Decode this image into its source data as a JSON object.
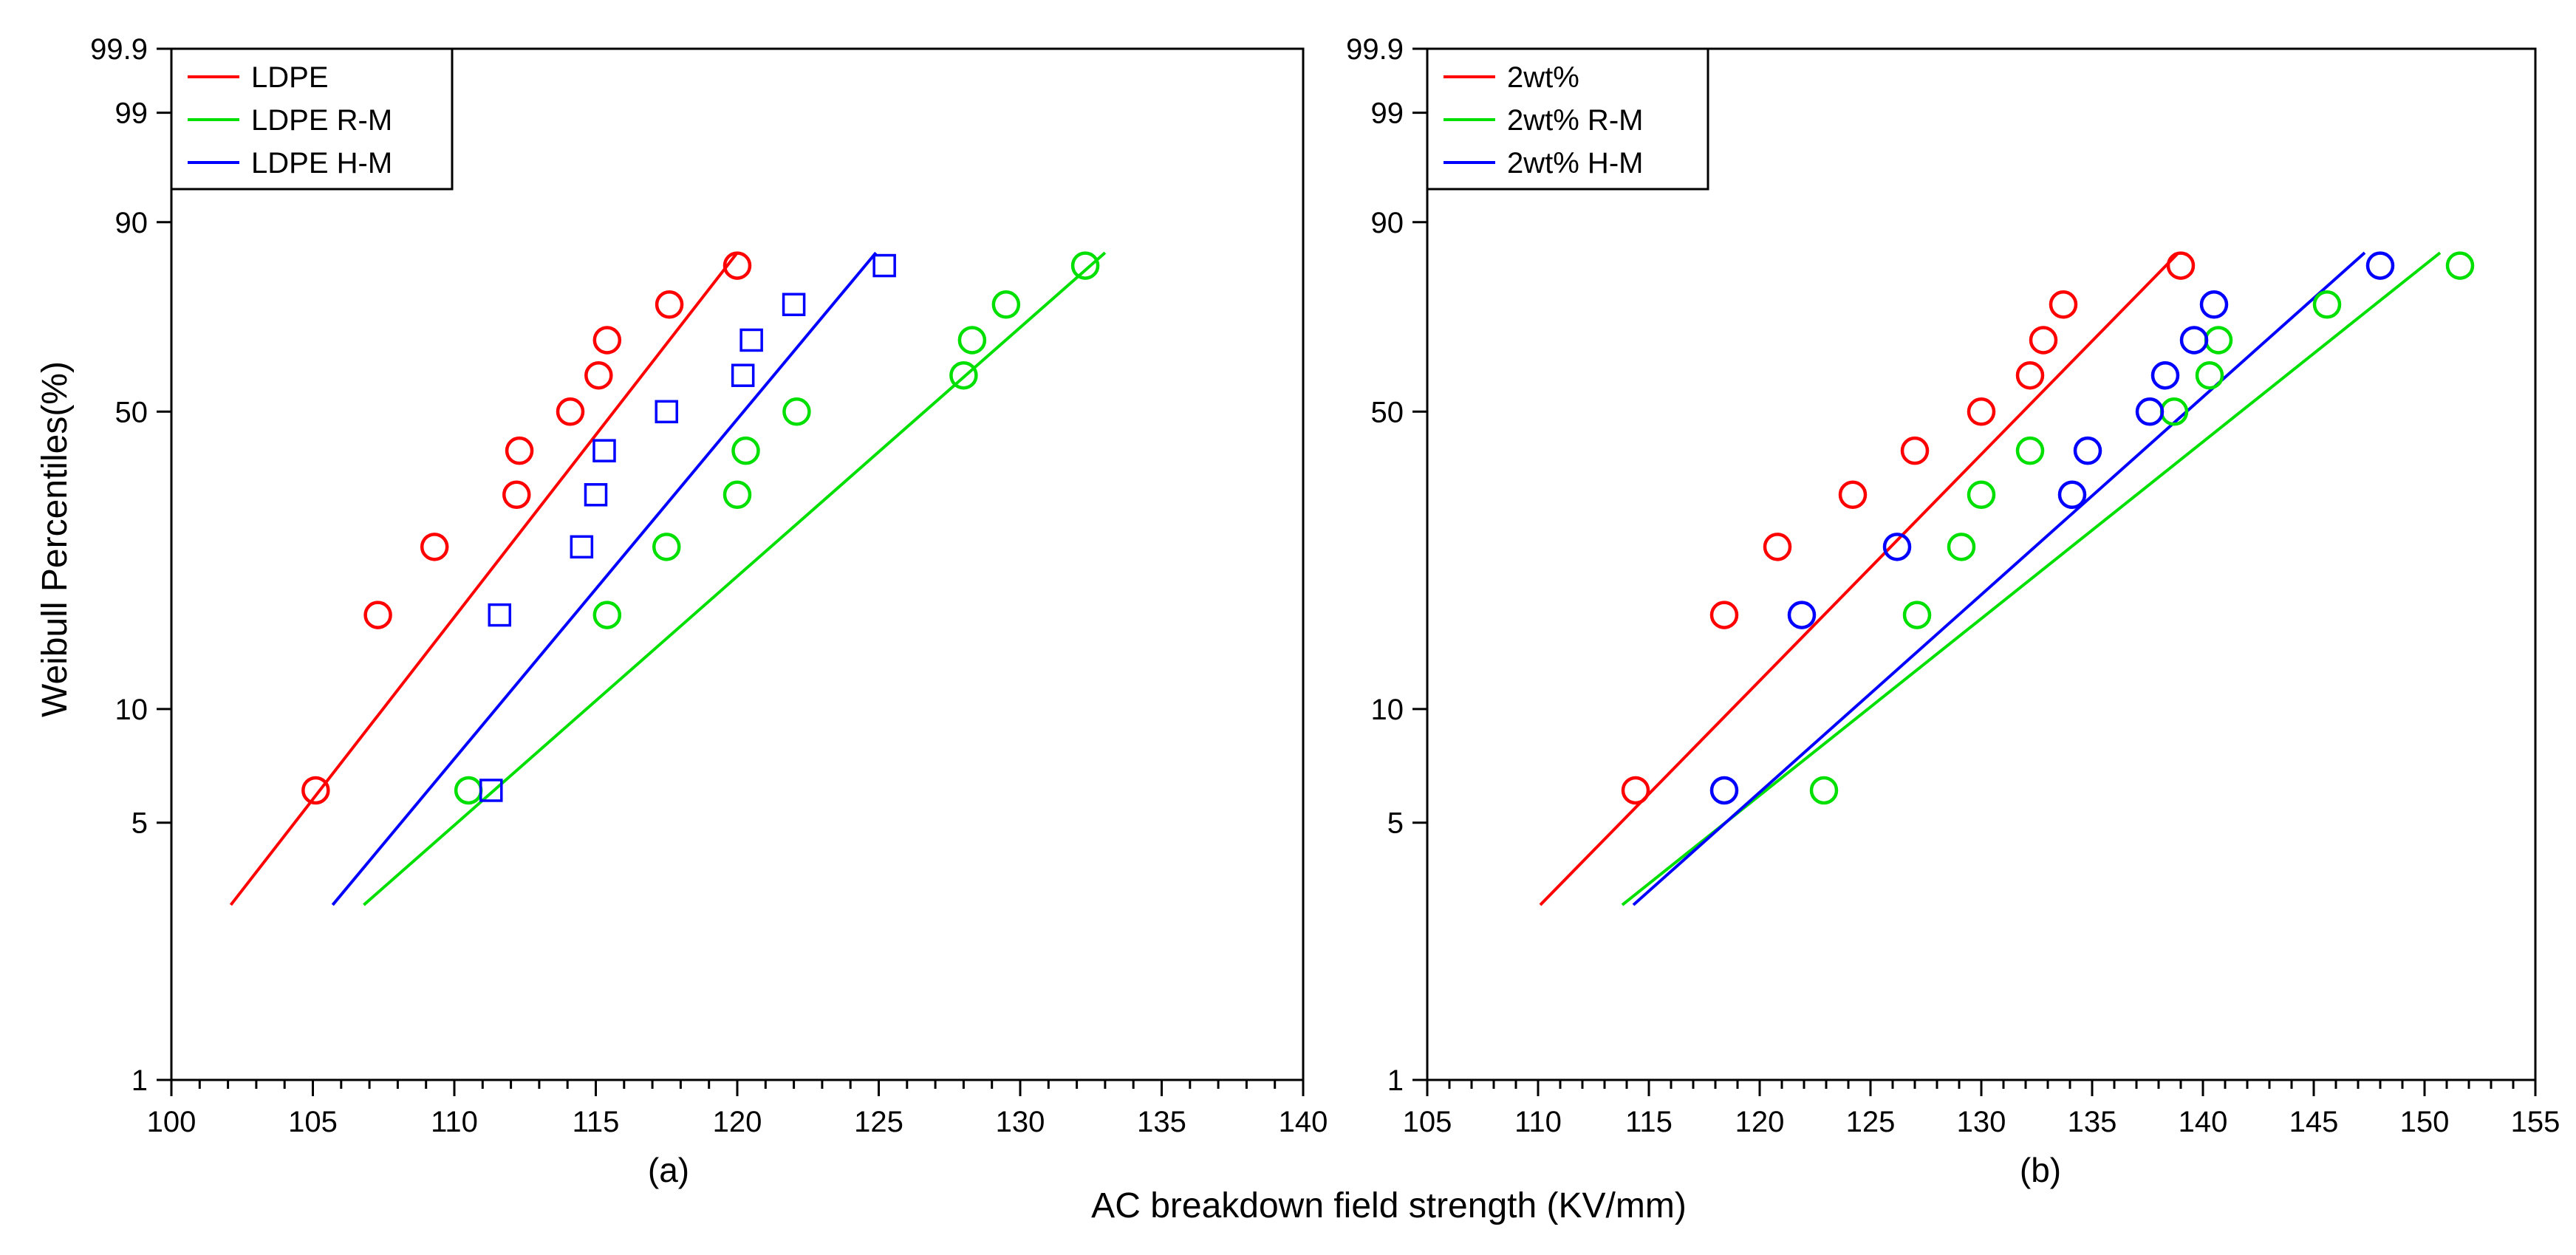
{
  "x_axis_title": "AC breakdown field strength (KV/mm)",
  "y_axis_title": "Weibull Percentiles(%)",
  "colors": {
    "red": "#ff0000",
    "green": "#00e000",
    "blue": "#0000ff",
    "axis": "#000000"
  },
  "chart_data": [
    {
      "type": "scatter",
      "panel_label": "(a)",
      "xlabel": "AC breakdown field strength (KV/mm)",
      "ylabel": "Weibull Percentiles(%)",
      "y_scale": "weibull",
      "xlim": [
        100,
        140
      ],
      "ylim": [
        1,
        99.9
      ],
      "x_ticks": [
        100,
        105,
        110,
        115,
        120,
        125,
        130,
        135,
        140
      ],
      "y_ticks": [
        1,
        5,
        10,
        50,
        90,
        99,
        99.9
      ],
      "legend_position": "top-left",
      "series": [
        {
          "name": "LDPE",
          "color": "#ff0000",
          "marker": "circle",
          "points": [
            [
              105.1,
              6.1
            ],
            [
              107.3,
              17.4
            ],
            [
              109.3,
              25.5
            ],
            [
              112.2,
              33.6
            ],
            [
              112.3,
              41.8
            ],
            [
              114.1,
              50.0
            ],
            [
              115.1,
              58.2
            ],
            [
              115.4,
              66.4
            ],
            [
              117.6,
              74.5
            ],
            [
              120.0,
              82.6
            ]
          ],
          "fit_line": [
            [
              102.1,
              3.0
            ],
            [
              120.0,
              85.0
            ]
          ]
        },
        {
          "name": "LDPE R-M",
          "color": "#00e000",
          "marker": "circle",
          "points": [
            [
              110.5,
              6.1
            ],
            [
              115.4,
              17.4
            ],
            [
              117.5,
              25.5
            ],
            [
              120.0,
              33.6
            ],
            [
              120.3,
              41.8
            ],
            [
              122.1,
              50.0
            ],
            [
              128.0,
              58.2
            ],
            [
              128.3,
              66.4
            ],
            [
              129.5,
              74.5
            ],
            [
              132.3,
              82.6
            ]
          ],
          "fit_line": [
            [
              106.8,
              3.0
            ],
            [
              133.0,
              85.0
            ]
          ]
        },
        {
          "name": "LDPE H-M",
          "color": "#0000ff",
          "marker": "square",
          "points": [
            [
              111.3,
              6.1
            ],
            [
              111.6,
              17.4
            ],
            [
              114.5,
              25.5
            ],
            [
              115.0,
              33.6
            ],
            [
              115.3,
              41.8
            ],
            [
              117.5,
              50.0
            ],
            [
              120.2,
              58.2
            ],
            [
              120.5,
              66.4
            ],
            [
              122.0,
              74.5
            ],
            [
              125.2,
              82.6
            ]
          ],
          "fit_line": [
            [
              105.7,
              3.0
            ],
            [
              124.9,
              85.0
            ]
          ]
        }
      ]
    },
    {
      "type": "scatter",
      "panel_label": "(b)",
      "xlabel": "AC breakdown field strength (KV/mm)",
      "ylabel": "Weibull Percentiles(%)",
      "y_scale": "weibull",
      "xlim": [
        105,
        155
      ],
      "ylim": [
        1,
        99.9
      ],
      "x_ticks": [
        105,
        110,
        115,
        120,
        125,
        130,
        135,
        140,
        145,
        150,
        155
      ],
      "y_ticks": [
        1,
        5,
        10,
        50,
        90,
        99,
        99.9
      ],
      "legend_position": "top-left",
      "series": [
        {
          "name": "2wt%",
          "color": "#ff0000",
          "marker": "circle",
          "points": [
            [
              114.4,
              6.1
            ],
            [
              118.4,
              17.4
            ],
            [
              120.8,
              25.5
            ],
            [
              124.2,
              33.6
            ],
            [
              127.0,
              41.8
            ],
            [
              130.0,
              50.0
            ],
            [
              132.2,
              58.2
            ],
            [
              132.8,
              66.4
            ],
            [
              133.7,
              74.5
            ],
            [
              139.0,
              82.6
            ]
          ],
          "fit_line": [
            [
              110.1,
              3.0
            ],
            [
              138.9,
              85.0
            ]
          ]
        },
        {
          "name": "2wt% R-M",
          "color": "#00e000",
          "marker": "circle",
          "points": [
            [
              122.9,
              6.1
            ],
            [
              127.1,
              17.4
            ],
            [
              129.1,
              25.5
            ],
            [
              130.0,
              33.6
            ],
            [
              132.2,
              41.8
            ],
            [
              138.7,
              50.0
            ],
            [
              140.3,
              58.2
            ],
            [
              140.7,
              66.4
            ],
            [
              145.6,
              74.5
            ],
            [
              151.6,
              82.6
            ]
          ],
          "fit_line": [
            [
              113.8,
              3.0
            ],
            [
              150.7,
              85.0
            ]
          ]
        },
        {
          "name": "2wt% H-M",
          "color": "#0000ff",
          "marker": "circle",
          "points": [
            [
              118.4,
              6.1
            ],
            [
              121.9,
              17.4
            ],
            [
              126.2,
              25.5
            ],
            [
              134.1,
              33.6
            ],
            [
              134.8,
              41.8
            ],
            [
              137.6,
              50.0
            ],
            [
              138.3,
              58.2
            ],
            [
              139.6,
              66.4
            ],
            [
              140.5,
              74.5
            ],
            [
              148.0,
              82.6
            ]
          ],
          "fit_line": [
            [
              114.3,
              3.0
            ],
            [
              147.3,
              85.0
            ]
          ]
        }
      ]
    }
  ]
}
